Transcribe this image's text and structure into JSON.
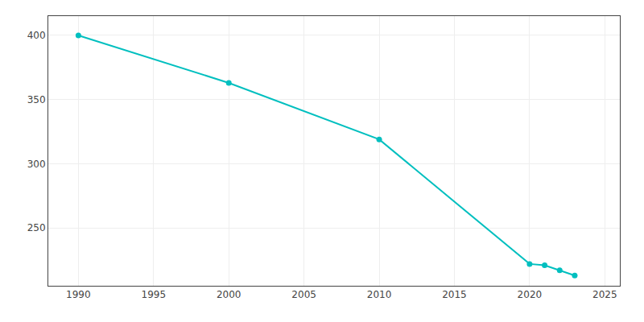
{
  "chart_data": {
    "type": "line",
    "x": [
      1990,
      2000,
      2010,
      2020,
      2021,
      2022,
      2023
    ],
    "values": [
      400,
      363,
      319,
      222,
      221,
      217,
      213
    ],
    "color": "#00BFBF",
    "marker": "circle",
    "xlim": [
      1988,
      2026
    ],
    "xticks": [
      1990,
      1995,
      2000,
      2005,
      2010,
      2015,
      2020,
      2025
    ],
    "ylim": [
      205,
      415
    ],
    "yticks": [
      250,
      300,
      350,
      400
    ],
    "grid": true
  }
}
